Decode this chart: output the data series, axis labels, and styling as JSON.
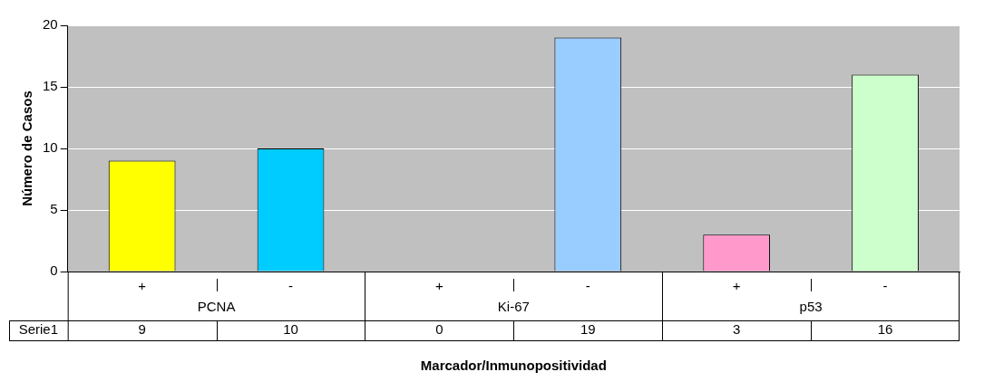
{
  "chart_data": {
    "type": "bar",
    "ylabel": "Número de Casos",
    "xlabel": "Marcador/Inmunopositividad",
    "categories": [
      "+",
      "-",
      "+",
      "-",
      "+",
      "-"
    ],
    "annotations": [
      "PCNA",
      "Ki-67",
      "p53"
    ],
    "series": [
      {
        "name": "Serie1",
        "values": [
          9,
          10,
          0,
          19,
          3,
          16
        ],
        "colors": [
          "#ffff00",
          "#00ccff",
          "#99ccff",
          "#99ccff",
          "#ff99cc",
          "#ccffcc"
        ]
      }
    ],
    "ylim": [
      0,
      20
    ],
    "yticks": [
      0,
      5,
      10,
      15,
      20
    ],
    "grid": "y",
    "legend": false,
    "data_labels": true
  }
}
